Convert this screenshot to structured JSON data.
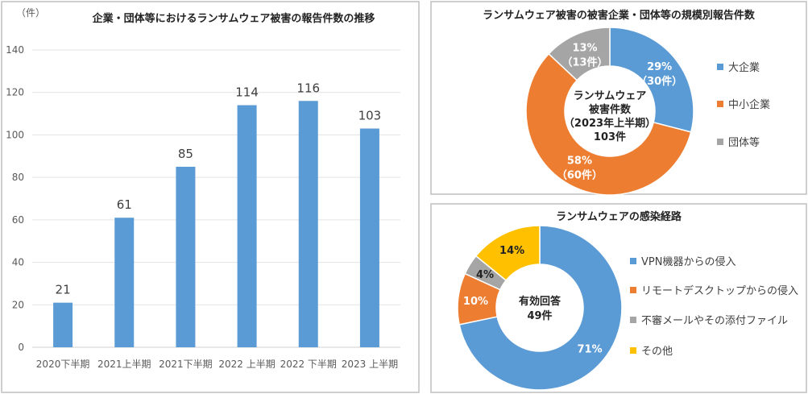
{
  "chart_data": [
    {
      "type": "bar",
      "title": "企業・団体等におけるランサムウェア被害の報告件数の推移",
      "ylabel": "（件）",
      "categories": [
        "2020下半期",
        "2021上半期",
        "2021下半期",
        "2022 上半期",
        "2022 下半期",
        "2023 上半期"
      ],
      "values": [
        21,
        61,
        85,
        114,
        116,
        103
      ],
      "ylim": [
        0,
        140
      ],
      "yticks": [
        0,
        20,
        40,
        60,
        80,
        100,
        120,
        140
      ],
      "grid": true,
      "color": "#5B9BD5"
    },
    {
      "type": "pie",
      "title": "ランサムウェア被害の被害企業・団体等の規模別報告件数",
      "donut": true,
      "center_text": [
        "ランサムウェア",
        "被害件数",
        "（2023年上半期）",
        "103件"
      ],
      "slices": [
        {
          "name": "大企業",
          "percent": 29,
          "count": 30,
          "label1": "29%",
          "label2": "（30件）",
          "color": "#5B9BD5"
        },
        {
          "name": "中小企業",
          "percent": 58,
          "count": 60,
          "label1": "58%",
          "label2": "（60件）",
          "color": "#ED7D31"
        },
        {
          "name": "団体等",
          "percent": 13,
          "count": 13,
          "label1": "13%",
          "label2": "（13件）",
          "color": "#A5A5A5"
        }
      ],
      "legend": "right"
    },
    {
      "type": "pie",
      "title": "ランサムウェアの感染経路",
      "donut": true,
      "center_text": [
        "有効回答",
        "49件"
      ],
      "slices": [
        {
          "name": "VPN機器からの侵入",
          "percent": 71,
          "label1": "71%",
          "color": "#5B9BD5"
        },
        {
          "name": "リモートデスクトップからの侵入",
          "percent": 10,
          "label1": "10%",
          "color": "#ED7D31"
        },
        {
          "name": "不審メールやその添付ファイル",
          "percent": 4,
          "label1": "4%",
          "color": "#A5A5A5"
        },
        {
          "name": "その他",
          "percent": 14,
          "label1": "14%",
          "color": "#FFC000"
        }
      ],
      "legend": "right"
    }
  ]
}
